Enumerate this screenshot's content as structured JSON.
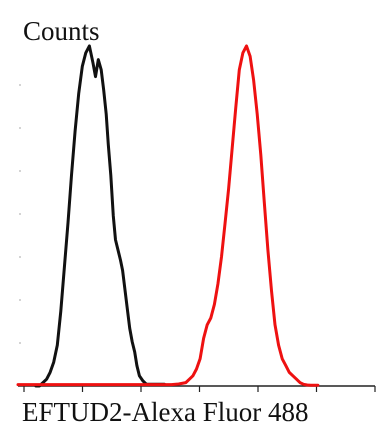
{
  "chart_data": {
    "type": "line",
    "title": "",
    "ylabel": "Counts",
    "xlabel": "EFTUD2-Alexa Fluor 488",
    "xlim": [
      0,
      100
    ],
    "ylim": [
      0,
      100
    ],
    "grid": false,
    "legend": "none",
    "series": [
      {
        "color": "#111111",
        "x": [
          5,
          6,
          7,
          8,
          9,
          10,
          11,
          12,
          13,
          14,
          15,
          16,
          17,
          18,
          19,
          20,
          21,
          21.7,
          22.5,
          23.3,
          24,
          24.7,
          25.3,
          26,
          26.7,
          27.3,
          28,
          28.7,
          29.3,
          30,
          30.7,
          31.3,
          32,
          32.7,
          33.3,
          34,
          35,
          36,
          37,
          38,
          39,
          40,
          41
        ],
        "y": [
          0,
          0,
          1,
          2,
          4,
          7,
          12,
          22,
          35,
          48,
          62,
          75,
          86,
          94,
          98,
          100,
          95,
          91,
          96,
          93,
          87,
          80,
          71,
          62,
          50,
          43,
          40,
          37,
          34,
          28,
          22,
          17,
          13,
          10,
          6,
          3,
          1.5,
          0.5,
          0.5,
          0.5,
          0.5,
          0.5,
          0.5
        ]
      },
      {
        "color": "#ee1111",
        "x": [
          0,
          5,
          10,
          15,
          20,
          25,
          30,
          35,
          40,
          43,
          45,
          47,
          48,
          49,
          50,
          51,
          52,
          53,
          54,
          55,
          56,
          57,
          58,
          59,
          60,
          61,
          62,
          63,
          64,
          65,
          66,
          67,
          68,
          69,
          70,
          71,
          72,
          73,
          74,
          75,
          76,
          77,
          78,
          79,
          80,
          81,
          82,
          84
        ],
        "y": [
          0.4,
          0.4,
          0.4,
          0.4,
          0.4,
          0.4,
          0.4,
          0.4,
          0.4,
          0.4,
          0.6,
          1,
          2,
          3,
          5,
          8,
          14,
          18,
          20,
          24,
          30,
          38,
          48,
          58,
          70,
          82,
          93,
          98,
          100,
          97,
          90,
          80,
          68,
          54,
          40,
          28,
          18,
          12,
          8,
          6,
          4,
          3,
          2,
          1,
          0.5,
          0.3,
          0.2,
          0.2
        ]
      }
    ]
  }
}
